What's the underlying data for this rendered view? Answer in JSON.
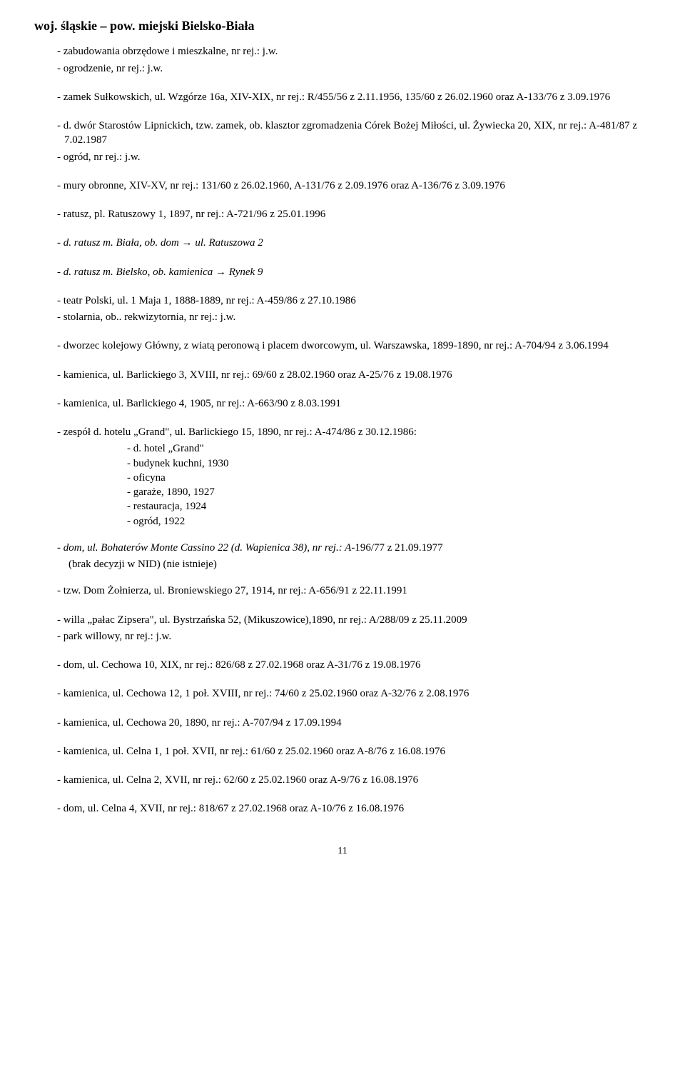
{
  "heading": "woj. śląskie – pow. miejski Bielsko-Biała",
  "lines": [
    {
      "t": "- zabudowania obrzędowe i mieszkalne, nr rej.: j.w."
    },
    {
      "t": "- ogrodzenie, nr rej.: j.w."
    },
    {
      "sp": 1
    },
    {
      "t": "- zamek Sułkowskich, ul. Wzgórze 16a, XIV-XIX, nr rej.: R/455/56 z 2.11.1956, 135/60 z 26.02.1960 oraz A-133/76 z 3.09.1976"
    },
    {
      "sp": 1
    },
    {
      "t": "- d. dwór Starostów Lipnickich, tzw. zamek, ob. klasztor zgromadzenia Córek Bożej Miłości, ul. Żywiecka 20, XIX, nr rej.: A-481/87 z 7.02.1987"
    },
    {
      "t": "- ogród, nr rej.: j.w."
    },
    {
      "sp": 1
    },
    {
      "t": "- mury obronne, XIV-XV, nr rej.: 131/60 z 26.02.1960, A-131/76 z 2.09.1976 oraz A-136/76 z 3.09.1976"
    },
    {
      "sp": 1
    },
    {
      "t": "- ratusz, pl. Ratuszowy 1, 1897, nr rej.: A-721/96 z 25.01.1996"
    },
    {
      "sp": 1
    },
    {
      "it": "- d. ratusz  m. Biała, ob. dom  →  ul. Ratuszowa 2"
    },
    {
      "sp": 1
    },
    {
      "it": "- d. ratusz  m. Bielsko, ob. kamienica  →  Rynek 9"
    },
    {
      "sp": 1
    },
    {
      "t": "- teatr Polski, ul. 1 Maja 1, 1888-1889, nr rej.: A-459/86 z 27.10.1986"
    },
    {
      "t": "- stolarnia, ob.. rekwizytornia, nr rej.: j.w."
    },
    {
      "sp": 1
    },
    {
      "t": "- dworzec kolejowy Główny, z wiatą peronową i placem dworcowym, ul. Warszawska, 1899-1890, nr rej.: A-704/94 z 3.06.1994"
    },
    {
      "sp": 1
    },
    {
      "t": "- kamienica, ul. Barlickiego 3, XVIII, nr rej.: 69/60 z 28.02.1960 oraz A-25/76 z 19.08.1976"
    },
    {
      "sp": 1
    },
    {
      "t": "- kamienica, ul. Barlickiego 4, 1905, nr rej.: A-663/90 z 8.03.1991"
    },
    {
      "sp": 1
    },
    {
      "t": "- zespół d. hotelu „Grand\", ul. Barlickiego 15, 1890, nr rej.: A-474/86 z 30.12.1986:"
    },
    {
      "n": 1,
      "t": "- d. hotel „Grand\""
    },
    {
      "n": 1,
      "t": "- budynek kuchni, 1930"
    },
    {
      "n": 1,
      "t": "- oficyna"
    },
    {
      "n": 1,
      "t": "- garaże, 1890, 1927"
    },
    {
      "n": 1,
      "t": "- restauracja, 1924"
    },
    {
      "n": 1,
      "t": "- ogród, 1922"
    },
    {
      "sp": 1
    },
    {
      "mixed": [
        {
          "it": "- dom, ul. Bohaterów Monte Cassino 22 (d. Wapienica 38), nr rej.: A"
        },
        {
          "t": "-196/77 z 21.09.1977"
        }
      ]
    },
    {
      "t": "  (brak decyzji w NID) (nie istnieje)",
      "cont": 1
    },
    {
      "sp": 1
    },
    {
      "t": "- tzw. Dom Żołnierza, ul. Broniewskiego 27, 1914, nr rej.: A-656/91 z 22.11.1991"
    },
    {
      "sp": 1
    },
    {
      "t": "- willa „pałac Zipsera\", ul. Bystrzańska 52, (Mikuszowice),1890, nr rej.: A/288/09 z 25.11.2009"
    },
    {
      "t": "- park willowy, nr rej.: j.w."
    },
    {
      "sp": 1
    },
    {
      "t": "- dom, ul. Cechowa 10, XIX, nr rej.: 826/68 z 27.02.1968 oraz A-31/76 z 19.08.1976"
    },
    {
      "sp": 1
    },
    {
      "t": "- kamienica, ul. Cechowa 12, 1 poł. XVIII, nr rej.: 74/60 z 25.02.1960 oraz A-32/76 z 2.08.1976"
    },
    {
      "sp": 1
    },
    {
      "t": "- kamienica, ul. Cechowa 20, 1890, nr rej.: A-707/94 z 17.09.1994"
    },
    {
      "sp": 1
    },
    {
      "t": "- kamienica, ul. Celna 1, 1 poł. XVII, nr rej.: 61/60 z 25.02.1960 oraz A-8/76 z 16.08.1976"
    },
    {
      "sp": 1
    },
    {
      "t": "- kamienica, ul. Celna 2, XVII, nr rej.: 62/60 z 25.02.1960 oraz A-9/76 z 16.08.1976"
    },
    {
      "sp": 1
    },
    {
      "t": "- dom, ul. Celna 4, XVII, nr rej.: 818/67 z 27.02.1968 oraz A-10/76 z 16.08.1976"
    }
  ],
  "page_number": "11"
}
